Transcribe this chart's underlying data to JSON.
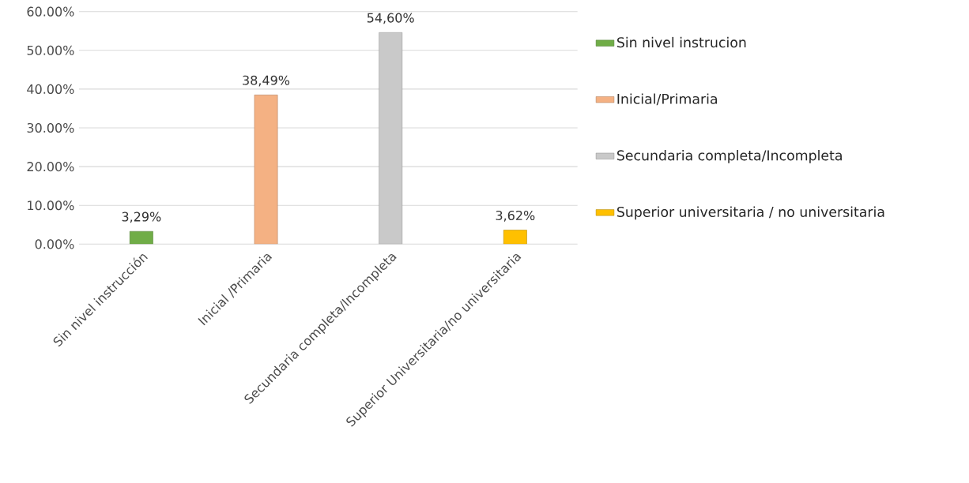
{
  "chart_data": {
    "type": "bar",
    "categories": [
      "Sin nivel instrucción",
      "Inicial /Primaria",
      "Secundaria completa/Incompleta",
      "Superior Universitaria/no universitaria"
    ],
    "series": [
      {
        "name": "Sin nivel instrucion",
        "color": "#70ad47",
        "values": [
          3.29,
          null,
          null,
          null
        ],
        "value_labels": [
          "3,29%",
          null,
          null,
          null
        ]
      },
      {
        "name": "Inicial/Primaria",
        "color": "#f4b183",
        "values": [
          null,
          38.49,
          null,
          null
        ],
        "value_labels": [
          null,
          "38,49%",
          null,
          null
        ]
      },
      {
        "name": "Secundaria completa/Incompleta",
        "color": "#c9c9c9",
        "values": [
          null,
          null,
          54.6,
          null
        ],
        "value_labels": [
          null,
          null,
          "54,60%",
          null
        ]
      },
      {
        "name": "Superior universitaria / no universitaria",
        "color": "#ffc000",
        "values": [
          null,
          null,
          null,
          3.62
        ],
        "value_labels": [
          null,
          null,
          null,
          "3,62%"
        ]
      }
    ],
    "ylim": [
      0,
      60
    ],
    "yticks": [
      {
        "value": 0,
        "label": "0.00%"
      },
      {
        "value": 10,
        "label": "10.00%"
      },
      {
        "value": 20,
        "label": "20.00%"
      },
      {
        "value": 30,
        "label": "30.00%"
      },
      {
        "value": 40,
        "label": "40.00%"
      },
      {
        "value": 50,
        "label": "50.00%"
      },
      {
        "value": 60,
        "label": "60.00%"
      }
    ],
    "grid": "y",
    "legend": "right"
  }
}
